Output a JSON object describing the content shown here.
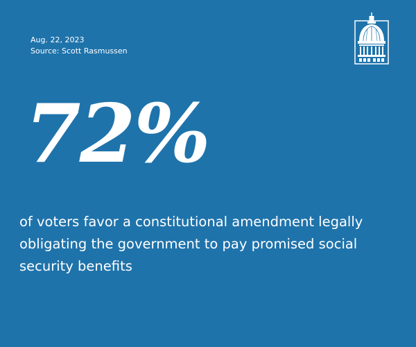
{
  "meta": {
    "date": "Aug. 22, 2023",
    "source": "Source: Scott Rasmussen"
  },
  "logo": {
    "icon": "capitol-dome-icon"
  },
  "headline": {
    "stat": "72%",
    "description": "of voters favor a constitutional amendment legally obligating the government to pay promised social security benefits"
  },
  "colors": {
    "background": "#1f73ab",
    "text": "#ffffff"
  }
}
